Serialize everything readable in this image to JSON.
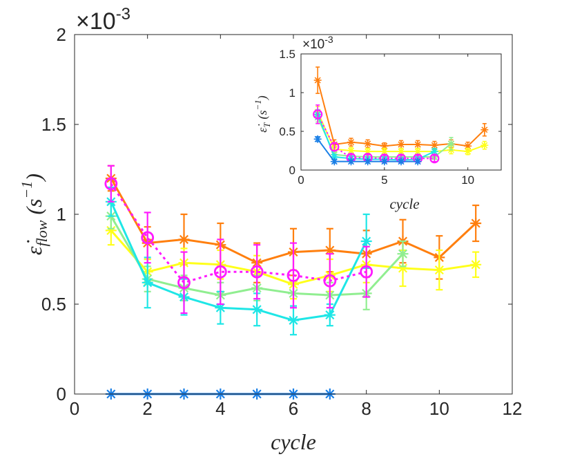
{
  "chart_data": [
    {
      "type": "line",
      "id": "main",
      "xlabel": "cycle",
      "ylabel_main": "ε̇",
      "ylabel_sub": "flow",
      "ylabel_unit": "(s",
      "ylabel_unit_sup": "−1",
      "ylabel_unit_close": ")",
      "multiplier_base": "×10",
      "multiplier_exp": "-3",
      "xlim": [
        0,
        12
      ],
      "ylim": [
        0,
        2
      ],
      "xticks": [
        0,
        2,
        4,
        6,
        8,
        10,
        12
      ],
      "xtick_labels": [
        "0",
        "2",
        "4",
        "6",
        "8",
        "10",
        "12"
      ],
      "yticks": [
        0,
        0.5,
        1,
        1.5,
        2
      ],
      "ytick_labels": [
        "0",
        "0.5",
        "1",
        "1.5",
        "2"
      ],
      "series": [
        {
          "name": "orange",
          "color": "#ff7f0e",
          "marker": "asterisk",
          "dashed": false,
          "x": [
            1,
            2,
            3,
            4,
            5,
            6,
            7,
            8,
            9,
            10,
            11
          ],
          "values": [
            1.2,
            0.84,
            0.86,
            0.83,
            0.73,
            0.79,
            0.8,
            0.78,
            0.85,
            0.76,
            0.95
          ],
          "err": [
            0.07,
            0.09,
            0.14,
            0.12,
            0.11,
            0.13,
            0.12,
            0.13,
            0.12,
            0.12,
            0.1
          ]
        },
        {
          "name": "yellow",
          "color": "#ffff1a",
          "marker": "asterisk",
          "dashed": false,
          "x": [
            1,
            2,
            3,
            4,
            5,
            6,
            7,
            8,
            9,
            10,
            11
          ],
          "values": [
            0.91,
            0.68,
            0.73,
            0.72,
            0.68,
            0.61,
            0.66,
            0.72,
            0.7,
            0.69,
            0.72
          ],
          "err": [
            0.08,
            0.07,
            0.08,
            0.08,
            0.09,
            0.08,
            0.09,
            0.1,
            0.1,
            0.11,
            0.07
          ]
        },
        {
          "name": "green",
          "color": "#90ee90",
          "marker": "asterisk",
          "dashed": false,
          "x": [
            1,
            2,
            3,
            4,
            5,
            6,
            7,
            8,
            9
          ],
          "values": [
            0.99,
            0.64,
            0.59,
            0.55,
            0.59,
            0.56,
            0.55,
            0.56,
            0.78
          ],
          "err": [
            0.07,
            0.07,
            0.07,
            0.07,
            0.07,
            0.07,
            0.07,
            0.09,
            0.07
          ]
        },
        {
          "name": "cyan",
          "color": "#1ee6e6",
          "marker": "asterisk",
          "dashed": false,
          "x": [
            1,
            2,
            3,
            4,
            5,
            6,
            7,
            8
          ],
          "values": [
            1.07,
            0.62,
            0.54,
            0.48,
            0.47,
            0.41,
            0.44,
            0.85
          ],
          "err": [
            0.08,
            0.14,
            0.1,
            0.09,
            0.09,
            0.08,
            0.06,
            0.15
          ]
        },
        {
          "name": "magenta",
          "color": "#ff1aff",
          "marker": "circle",
          "dashed": true,
          "x": [
            1,
            2,
            3,
            4,
            5,
            6,
            7,
            8
          ],
          "values": [
            1.17,
            0.87,
            0.62,
            0.68,
            0.68,
            0.66,
            0.63,
            0.68
          ],
          "err": [
            0.1,
            0.14,
            0.17,
            0.18,
            0.15,
            0.18,
            0.15,
            0.14
          ]
        },
        {
          "name": "blue",
          "color": "#1a7fe6",
          "marker": "asterisk",
          "dashed": false,
          "x": [
            1,
            2,
            3,
            4,
            5,
            6,
            7
          ],
          "values": [
            0,
            0,
            0,
            0,
            0,
            0,
            0
          ],
          "err": [
            0,
            0,
            0,
            0,
            0,
            0,
            0
          ]
        }
      ]
    },
    {
      "type": "line",
      "id": "inset",
      "xlabel": "cycle",
      "ylabel_main": "ε̇",
      "ylabel_sub": "T",
      "ylabel_unit": "(s",
      "ylabel_unit_sup": "−1",
      "ylabel_unit_close": ")",
      "multiplier_base": "×10",
      "multiplier_exp": "-3",
      "xlim": [
        0,
        12
      ],
      "ylim": [
        0,
        1.5
      ],
      "xticks": [
        0,
        5,
        10
      ],
      "xtick_labels": [
        "0",
        "5",
        "10"
      ],
      "yticks": [
        0,
        0.5,
        1,
        1.5
      ],
      "ytick_labels": [
        "0",
        "0.5",
        "1",
        "1.5"
      ],
      "series": [
        {
          "name": "orange",
          "color": "#ff7f0e",
          "marker": "asterisk",
          "dashed": false,
          "x": [
            1,
            2,
            3,
            4,
            5,
            6,
            7,
            8,
            9,
            10,
            11
          ],
          "values": [
            1.16,
            0.33,
            0.36,
            0.34,
            0.31,
            0.33,
            0.33,
            0.32,
            0.34,
            0.31,
            0.52
          ],
          "err": [
            0.17,
            0.06,
            0.05,
            0.05,
            0.04,
            0.05,
            0.05,
            0.05,
            0.05,
            0.05,
            0.08
          ]
        },
        {
          "name": "yellow",
          "color": "#ffff1a",
          "marker": "asterisk",
          "dashed": false,
          "x": [
            1,
            2,
            3,
            4,
            5,
            6,
            7,
            8,
            9,
            10,
            11
          ],
          "values": [
            0.75,
            0.27,
            0.25,
            0.24,
            0.24,
            0.24,
            0.24,
            0.24,
            0.26,
            0.24,
            0.32
          ],
          "err": [
            0.07,
            0.04,
            0.04,
            0.04,
            0.04,
            0.04,
            0.04,
            0.04,
            0.05,
            0.04,
            0.05
          ]
        },
        {
          "name": "green",
          "color": "#90ee90",
          "marker": "asterisk",
          "dashed": false,
          "x": [
            1,
            2,
            3,
            4,
            5,
            6,
            7,
            8,
            9
          ],
          "values": [
            0.68,
            0.2,
            0.18,
            0.17,
            0.17,
            0.17,
            0.17,
            0.17,
            0.34
          ],
          "err": [
            0.06,
            0.03,
            0.03,
            0.03,
            0.03,
            0.03,
            0.03,
            0.03,
            0.08
          ]
        },
        {
          "name": "cyan",
          "color": "#1ee6e6",
          "marker": "asterisk",
          "dashed": false,
          "x": [
            1,
            2,
            3,
            4,
            5,
            6,
            7,
            8
          ],
          "values": [
            0.72,
            0.17,
            0.15,
            0.14,
            0.14,
            0.13,
            0.14,
            0.24
          ],
          "err": [
            0.06,
            0.03,
            0.03,
            0.03,
            0.03,
            0.03,
            0.03,
            0.04
          ]
        },
        {
          "name": "magenta",
          "color": "#ff1aff",
          "marker": "circle",
          "dashed": true,
          "x": [
            1,
            2,
            3,
            4,
            5,
            6,
            7,
            8
          ],
          "values": [
            0.72,
            0.3,
            0.16,
            0.16,
            0.15,
            0.15,
            0.15,
            0.15
          ],
          "err": [
            0.12,
            0.05,
            0.04,
            0.04,
            0.04,
            0.04,
            0.04,
            0.04
          ]
        },
        {
          "name": "blue",
          "color": "#1a7fe6",
          "marker": "asterisk",
          "dashed": false,
          "x": [
            1,
            2,
            3,
            4,
            5,
            6,
            7
          ],
          "values": [
            0.4,
            0.11,
            0.11,
            0.11,
            0.11,
            0.11,
            0.11
          ],
          "err": [
            0.03,
            0.02,
            0.02,
            0.02,
            0.02,
            0.02,
            0.02
          ]
        }
      ]
    }
  ]
}
